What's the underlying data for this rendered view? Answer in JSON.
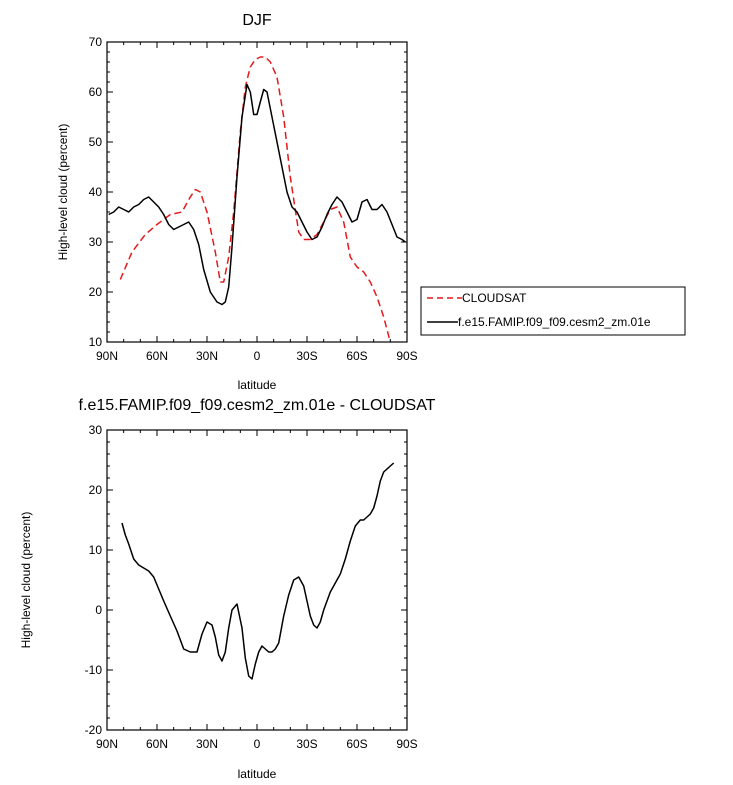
{
  "chart_data": [
    {
      "type": "line",
      "title": "DJF",
      "xlabel": "latitude",
      "ylabel": "High-level cloud (percent)",
      "xlim": [
        90,
        -90
      ],
      "ylim": [
        10,
        70
      ],
      "x_ticks": [
        {
          "value": 90,
          "label": "90N"
        },
        {
          "value": 60,
          "label": "60N"
        },
        {
          "value": 30,
          "label": "30N"
        },
        {
          "value": 0,
          "label": "0"
        },
        {
          "value": -30,
          "label": "30S"
        },
        {
          "value": -60,
          "label": "60S"
        },
        {
          "value": -90,
          "label": "90S"
        }
      ],
      "y_ticks": [
        10,
        20,
        30,
        40,
        50,
        60,
        70
      ],
      "legend": {
        "placement": "right"
      },
      "series": [
        {
          "name": "CLOUDSAT",
          "color": "#e31a1c",
          "dash": "dashed",
          "x": [
            82,
            75,
            67,
            60,
            52,
            45,
            40,
            37,
            34,
            30,
            25,
            22,
            20,
            17,
            14,
            10,
            7,
            4,
            1,
            -2,
            -5,
            -8,
            -12,
            -16,
            -20,
            -25,
            -28,
            -32,
            -36,
            -40,
            -44,
            -48,
            -52,
            -56,
            -60,
            -64,
            -68,
            -72,
            -76,
            -80
          ],
          "y": [
            22.5,
            28,
            31.5,
            33.5,
            35.5,
            36,
            39,
            40.5,
            40,
            36,
            28,
            22,
            22,
            27,
            36,
            52,
            61,
            65,
            66.5,
            67,
            67,
            66,
            63,
            55,
            43,
            32,
            30.5,
            30.5,
            31.5,
            34,
            36.5,
            37,
            34,
            27,
            25,
            24,
            22,
            19,
            15,
            9.5
          ]
        },
        {
          "name": "f.e15.FAMIP.f09_f09.cesm2_zm.01e",
          "color": "#000000",
          "dash": "solid",
          "x": [
            89,
            86,
            83,
            80,
            77,
            74,
            71,
            68,
            65,
            62,
            59,
            56,
            53,
            50,
            47,
            44,
            41,
            38,
            35,
            32,
            28,
            24,
            21,
            19,
            17,
            15,
            12,
            9,
            6,
            4,
            2,
            0,
            -2,
            -4,
            -6,
            -9,
            -12,
            -15,
            -18,
            -21,
            -24,
            -27,
            -30,
            -33,
            -36,
            -39,
            -42,
            -45,
            -48,
            -51,
            -54,
            -57,
            -60,
            -63,
            -66,
            -69,
            -72,
            -75,
            -78,
            -81,
            -84,
            -87,
            -89
          ],
          "y": [
            35.5,
            36,
            37,
            36.5,
            36,
            37,
            37.5,
            38.5,
            39,
            38,
            37,
            35.5,
            33.5,
            32.5,
            33,
            33.5,
            34,
            32.5,
            29.5,
            24.5,
            20,
            18,
            17.5,
            18,
            21,
            29,
            43,
            55,
            61.5,
            60,
            55.5,
            55.5,
            58,
            60.5,
            60,
            55,
            50,
            45,
            40,
            37,
            36,
            34,
            32,
            30.5,
            31,
            33,
            35.5,
            37.5,
            39,
            38,
            36,
            34,
            34.5,
            38,
            38.5,
            36.5,
            36.5,
            37.5,
            36,
            33.5,
            31,
            30.5,
            30
          ]
        }
      ]
    },
    {
      "type": "line",
      "title": "f.e15.FAMIP.f09_f09.cesm2_zm.01e - CLOUDSAT",
      "xlabel": "latitude",
      "ylabel": "High-level cloud (percent)",
      "xlim": [
        90,
        -90
      ],
      "ylim": [
        -20,
        30
      ],
      "x_ticks": [
        {
          "value": 90,
          "label": "90N"
        },
        {
          "value": 60,
          "label": "60N"
        },
        {
          "value": 30,
          "label": "30N"
        },
        {
          "value": 0,
          "label": "0"
        },
        {
          "value": -30,
          "label": "30S"
        },
        {
          "value": -60,
          "label": "60S"
        },
        {
          "value": -90,
          "label": "90S"
        }
      ],
      "y_ticks": [
        -20,
        -10,
        0,
        10,
        20,
        30
      ],
      "series": [
        {
          "color": "#000000",
          "dash": "solid",
          "x": [
            81,
            79,
            77,
            74,
            71,
            68,
            65,
            62,
            59,
            56,
            52,
            48,
            44,
            40,
            36,
            33,
            30,
            27,
            25,
            23,
            21,
            19,
            17,
            15,
            12,
            9,
            7,
            5,
            3,
            1,
            -1,
            -3,
            -5,
            -7,
            -9,
            -11,
            -13,
            -16,
            -19,
            -22,
            -25,
            -28,
            -30,
            -32,
            -34,
            -36,
            -38,
            -40,
            -42,
            -44,
            -47,
            -50,
            -53,
            -56,
            -59,
            -62,
            -64,
            -66,
            -68,
            -70,
            -72,
            -74,
            -76,
            -78,
            -80,
            -82
          ],
          "y": [
            14.5,
            12.5,
            11,
            8.5,
            7.5,
            7,
            6.5,
            5.5,
            3.5,
            1.5,
            -1,
            -3.5,
            -6.5,
            -7,
            -7,
            -4,
            -2,
            -2.5,
            -4.5,
            -7.5,
            -8.5,
            -7,
            -3,
            0,
            1,
            -3,
            -8,
            -11,
            -11.5,
            -9,
            -7,
            -6,
            -6.5,
            -7,
            -7,
            -6.5,
            -5.5,
            -1,
            2.5,
            5,
            5.5,
            4,
            1.5,
            -1,
            -2.5,
            -3,
            -2,
            0,
            1.5,
            3,
            4.5,
            6,
            8.5,
            11.5,
            14,
            15,
            15,
            15.5,
            16,
            17,
            19,
            21.5,
            23,
            23.5,
            24,
            24.5
          ]
        }
      ]
    }
  ]
}
